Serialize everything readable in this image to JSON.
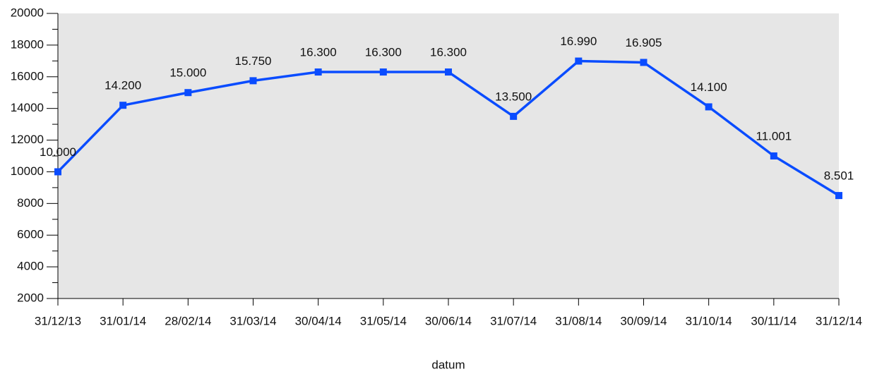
{
  "chart_data": {
    "type": "line",
    "x_label": "datum",
    "categories": [
      "31/12/13",
      "31/01/14",
      "28/02/14",
      "31/03/14",
      "30/04/14",
      "31/05/14",
      "30/06/14",
      "31/07/14",
      "31/08/14",
      "30/09/14",
      "31/10/14",
      "30/11/14",
      "31/12/14"
    ],
    "series": [
      {
        "color": "#0a4cff",
        "values": [
          10000,
          14200,
          15000,
          15750,
          16300,
          16300,
          16300,
          13500,
          16990,
          16905,
          14100,
          11001,
          8501
        ],
        "value_labels": [
          "10.000",
          "14.200",
          "15.000",
          "15.750",
          "16.300",
          "16.300",
          "16.300",
          "13.500",
          "16.990",
          "16.905",
          "14.100",
          "11.001",
          "8.501"
        ]
      }
    ],
    "ylim": [
      2000,
      20000
    ],
    "yticks": [
      2000,
      4000,
      6000,
      8000,
      10000,
      12000,
      14000,
      16000,
      18000,
      20000
    ],
    "background": "#e6e6e6"
  }
}
